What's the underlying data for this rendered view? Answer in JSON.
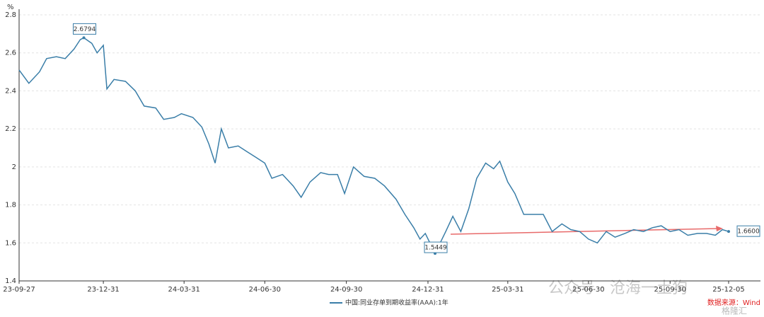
{
  "chart_data": {
    "type": "line",
    "y_unit": "%",
    "xlim": [
      "23-09-27",
      "25-12-05"
    ],
    "xticks": [
      "23-09-27",
      "23-12-31",
      "24-03-31",
      "24-06-30",
      "24-09-30",
      "24-12-31",
      "25-03-31",
      "25-06-30",
      "25-09-30",
      "25-12-05"
    ],
    "ylim": [
      1.4,
      2.8
    ],
    "yticks": [
      1.4,
      1.6,
      1.8,
      2,
      2.2,
      2.4,
      2.6,
      2.8
    ],
    "grid": true,
    "x": [
      "23-09-27",
      "23-10-08",
      "23-10-20",
      "23-10-28",
      "23-11-08",
      "23-11-18",
      "23-11-28",
      "23-12-05",
      "23-12-09",
      "23-12-18",
      "23-12-24",
      "23-12-31",
      "24-01-04",
      "24-01-12",
      "24-01-25",
      "24-02-05",
      "24-02-15",
      "24-02-28",
      "24-03-08",
      "24-03-20",
      "24-03-28",
      "24-04-10",
      "24-04-20",
      "24-04-28",
      "24-05-05",
      "24-05-12",
      "24-05-20",
      "24-05-31",
      "24-06-10",
      "24-06-20",
      "24-06-30",
      "24-07-08",
      "24-07-20",
      "24-08-01",
      "24-08-10",
      "24-08-20",
      "24-09-01",
      "24-09-10",
      "24-09-20",
      "24-09-28",
      "24-10-08",
      "24-10-20",
      "24-11-01",
      "24-11-12",
      "24-11-25",
      "24-12-05",
      "24-12-15",
      "24-12-22",
      "24-12-28",
      "25-01-08",
      "25-01-20",
      "25-01-28",
      "25-02-06",
      "25-02-15",
      "25-02-24",
      "25-03-06",
      "25-03-15",
      "25-03-22",
      "25-03-31",
      "25-04-08",
      "25-04-18",
      "25-04-28",
      "25-05-10",
      "25-05-20",
      "25-05-31",
      "25-06-10",
      "25-06-20",
      "25-06-30",
      "25-07-10",
      "25-07-20",
      "25-07-30",
      "25-08-10",
      "25-08-20",
      "25-08-31",
      "25-09-10",
      "25-09-20",
      "25-09-30",
      "25-10-10",
      "25-10-20",
      "25-10-31",
      "25-11-10",
      "25-11-20",
      "25-11-28",
      "25-12-05"
    ],
    "series": [
      {
        "name": "中国:同业存单到期收益率(AAA):1年",
        "color": "#3a7ea8",
        "values": [
          2.51,
          2.44,
          2.5,
          2.57,
          2.58,
          2.57,
          2.62,
          2.67,
          2.6794,
          2.65,
          2.6,
          2.64,
          2.41,
          2.46,
          2.45,
          2.4,
          2.32,
          2.31,
          2.25,
          2.26,
          2.28,
          2.26,
          2.21,
          2.12,
          2.02,
          2.2,
          2.1,
          2.11,
          2.08,
          2.05,
          2.02,
          1.94,
          1.96,
          1.9,
          1.84,
          1.92,
          1.97,
          1.96,
          1.96,
          1.86,
          2.0,
          1.95,
          1.94,
          1.9,
          1.83,
          1.75,
          1.68,
          1.62,
          1.65,
          1.5449,
          1.66,
          1.74,
          1.66,
          1.78,
          1.94,
          2.02,
          1.99,
          2.03,
          1.92,
          1.86,
          1.75,
          1.75,
          1.75,
          1.66,
          1.7,
          1.67,
          1.66,
          1.62,
          1.6,
          1.66,
          1.63,
          1.65,
          1.67,
          1.66,
          1.68,
          1.69,
          1.66,
          1.67,
          1.64,
          1.65,
          1.65,
          1.64,
          1.67,
          1.66
        ]
      }
    ],
    "annotations": [
      {
        "x": "23-12-09",
        "value": 2.6794,
        "label": "2.6794"
      },
      {
        "x": "25-01-08",
        "value": 1.5449,
        "label": "1.5449"
      },
      {
        "x": "25-12-05",
        "value": 1.66,
        "label": "1.6600"
      }
    ],
    "source": "数据来源：Wind",
    "watermark": "公众号 · 沧海一土狗",
    "logo": "格隆汇"
  }
}
